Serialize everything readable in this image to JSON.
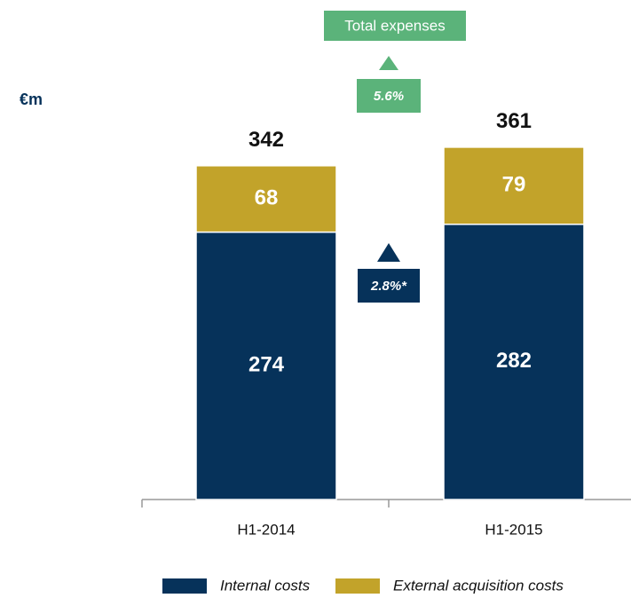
{
  "chart_data": {
    "type": "stacked_bar",
    "unit_label": "€m",
    "categories": [
      "H1-2014",
      "H1-2015"
    ],
    "series": [
      {
        "name": "Internal costs",
        "color": "#06325a",
        "values": [
          274,
          282
        ]
      },
      {
        "name": "External acquisition costs",
        "color": "#c2a32a",
        "values": [
          68,
          79
        ]
      }
    ],
    "totals": [
      342,
      361
    ],
    "annotations": {
      "total_title": "Total expenses",
      "total_change": "5.6%",
      "internal_change": "2.8%*"
    }
  }
}
